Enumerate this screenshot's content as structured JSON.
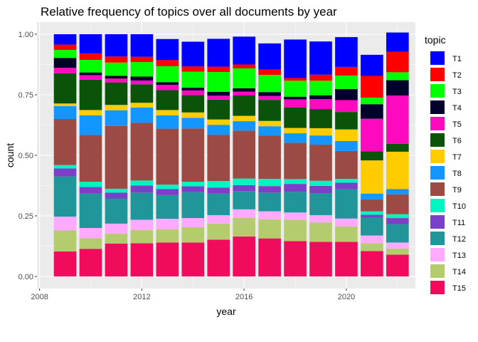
{
  "chart_data": {
    "type": "bar",
    "stacked": true,
    "title": "Relative frequency of topics over all documents by year",
    "xlabel": "year",
    "ylabel": "count",
    "x_ticks": [
      2008,
      2012,
      2016,
      2020
    ],
    "y_ticks": [
      "0.00",
      "0.25",
      "0.50",
      "0.75",
      "1.00"
    ],
    "xlim": [
      2007.9,
      2022.7
    ],
    "ylim": [
      -0.05,
      1.05
    ],
    "grid": true,
    "legend_title": "topic",
    "legend_position": "right",
    "categories": [
      2009,
      2010,
      2011,
      2012,
      2013,
      2014,
      2015,
      2016,
      2017,
      2018,
      2019,
      2020,
      2021,
      2022
    ],
    "series": [
      {
        "name": "T15",
        "color": "#f00b5c",
        "values": [
          0.103,
          0.114,
          0.136,
          0.137,
          0.14,
          0.14,
          0.152,
          0.165,
          0.157,
          0.146,
          0.143,
          0.143,
          0.105,
          0.09
        ]
      },
      {
        "name": "T14",
        "color": "#b5cc6e",
        "values": [
          0.087,
          0.044,
          0.041,
          0.054,
          0.055,
          0.063,
          0.066,
          0.077,
          0.079,
          0.088,
          0.08,
          0.063,
          0.032,
          0.025
        ]
      },
      {
        "name": "T13",
        "color": "#ffaaff",
        "values": [
          0.057,
          0.042,
          0.041,
          0.043,
          0.043,
          0.038,
          0.035,
          0.035,
          0.033,
          0.03,
          0.03,
          0.033,
          0.032,
          0.025
        ]
      },
      {
        "name": "T12",
        "color": "#20959a",
        "values": [
          0.166,
          0.142,
          0.104,
          0.112,
          0.098,
          0.107,
          0.089,
          0.075,
          0.077,
          0.085,
          0.091,
          0.121,
          0.075,
          0.076
        ]
      },
      {
        "name": "T11",
        "color": "#7b40c8",
        "values": [
          0.033,
          0.027,
          0.024,
          0.029,
          0.025,
          0.024,
          0.025,
          0.025,
          0.027,
          0.033,
          0.03,
          0.027,
          0.011,
          0.025
        ]
      },
      {
        "name": "T10",
        "color": "#00f5c0",
        "values": [
          0.014,
          0.022,
          0.016,
          0.021,
          0.018,
          0.019,
          0.027,
          0.027,
          0.03,
          0.02,
          0.021,
          0.016,
          0.014,
          0.016
        ]
      },
      {
        "name": "T9",
        "color": "#9c4a44",
        "values": [
          0.19,
          0.193,
          0.259,
          0.238,
          0.231,
          0.22,
          0.191,
          0.198,
          0.178,
          0.15,
          0.149,
          0.115,
          0.049,
          0.082
        ]
      },
      {
        "name": "T8",
        "color": "#1496ff",
        "values": [
          0.053,
          0.081,
          0.065,
          0.063,
          0.055,
          0.044,
          0.041,
          0.039,
          0.039,
          0.039,
          0.038,
          0.041,
          0.024,
          0.022
        ]
      },
      {
        "name": "T7",
        "color": "#ffcc00",
        "values": [
          0.011,
          0.022,
          0.022,
          0.02,
          0.022,
          0.022,
          0.022,
          0.022,
          0.022,
          0.022,
          0.03,
          0.048,
          0.137,
          0.154
        ]
      },
      {
        "name": "T6",
        "color": "#0b5309",
        "values": [
          0.125,
          0.125,
          0.093,
          0.076,
          0.082,
          0.072,
          0.082,
          0.084,
          0.087,
          0.085,
          0.079,
          0.072,
          0.038,
          0.033
        ]
      },
      {
        "name": "T5",
        "color": "#ff0abf",
        "values": [
          0.022,
          0.019,
          0.016,
          0.016,
          0.022,
          0.019,
          0.016,
          0.016,
          0.016,
          0.033,
          0.041,
          0.049,
          0.134,
          0.199
        ]
      },
      {
        "name": "T4",
        "color": "#00002d",
        "values": [
          0.041,
          0.011,
          0.011,
          0.016,
          0.011,
          0.011,
          0.016,
          0.014,
          0.016,
          0.011,
          0.016,
          0.046,
          0.06,
          0.063
        ]
      },
      {
        "name": "T3",
        "color": "#00ff00",
        "values": [
          0.033,
          0.052,
          0.055,
          0.06,
          0.066,
          0.066,
          0.082,
          0.082,
          0.071,
          0.066,
          0.06,
          0.055,
          0.027,
          0.033
        ]
      },
      {
        "name": "T2",
        "color": "#ff0000",
        "values": [
          0.022,
          0.027,
          0.025,
          0.022,
          0.025,
          0.022,
          0.022,
          0.016,
          0.022,
          0.011,
          0.025,
          0.036,
          0.09,
          0.085
        ]
      },
      {
        "name": "T1",
        "color": "#0000ff",
        "values": [
          0.043,
          0.079,
          0.092,
          0.093,
          0.087,
          0.102,
          0.115,
          0.115,
          0.108,
          0.159,
          0.137,
          0.123,
          0.087,
          0.079
        ]
      }
    ],
    "legend_order": [
      "T1",
      "T2",
      "T3",
      "T4",
      "T5",
      "T6",
      "T7",
      "T8",
      "T9",
      "T10",
      "T11",
      "T12",
      "T13",
      "T14",
      "T15"
    ]
  }
}
